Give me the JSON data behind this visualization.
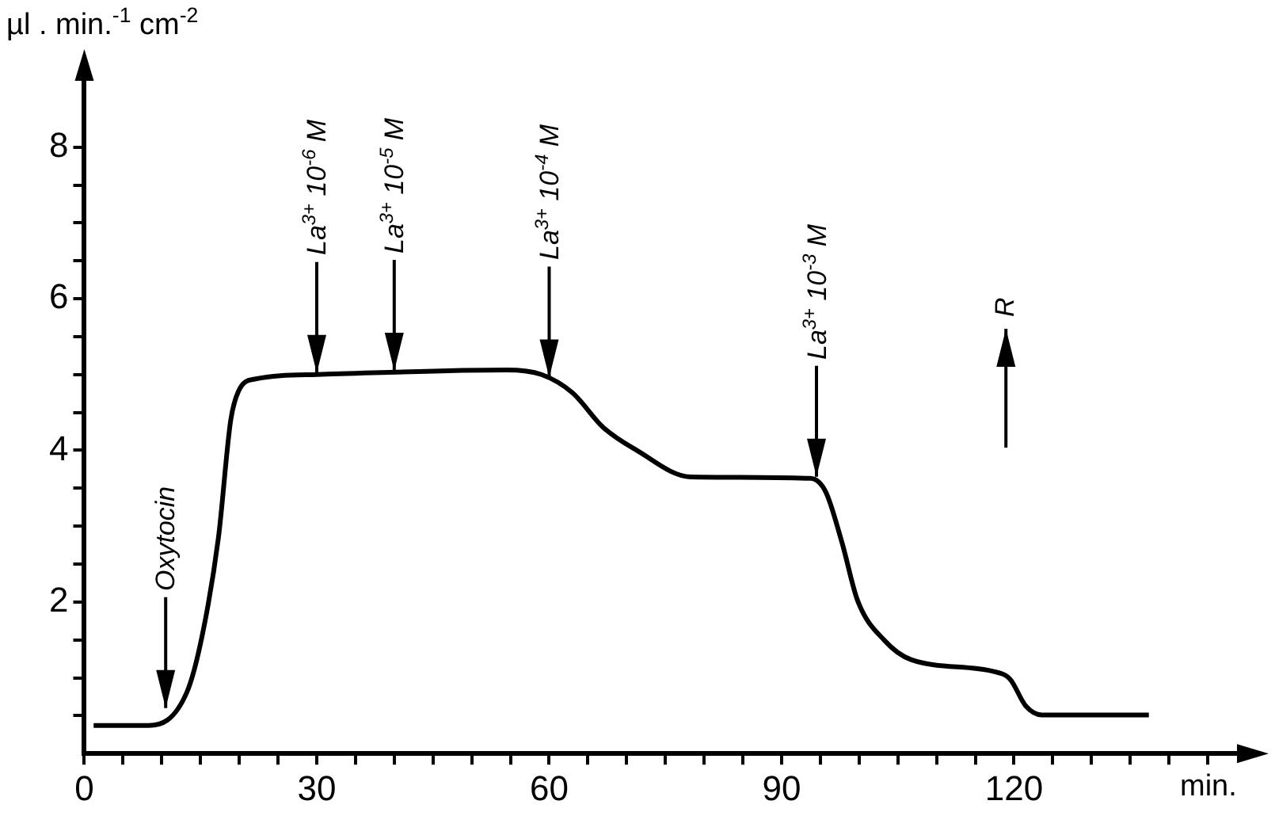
{
  "chart_data": {
    "type": "line",
    "xlabel": "min.",
    "ylabel": "µl . min.$^{-1}$ cm$^{-2}$",
    "xlim": [
      0,
      150
    ],
    "ylim": [
      0,
      9
    ],
    "xticks": [
      0,
      {
        "value": 5,
        "label": null
      },
      {
        "value": 10,
        "label": null
      },
      {
        "value": 15,
        "label": null
      },
      {
        "value": 20,
        "label": null
      },
      {
        "value": 25,
        "label": null
      },
      30,
      {
        "value": 35,
        "label": null
      },
      {
        "value": 40,
        "label": null
      },
      {
        "value": 45,
        "label": null
      },
      {
        "value": 50,
        "label": null
      },
      {
        "value": 55,
        "label": null
      },
      60,
      {
        "value": 65,
        "label": null
      },
      {
        "value": 70,
        "label": null
      },
      {
        "value": 75,
        "label": null
      },
      {
        "value": 80,
        "label": null
      },
      {
        "value": 85,
        "label": null
      },
      90,
      {
        "value": 95,
        "label": null
      },
      {
        "value": 100,
        "label": null
      },
      {
        "value": 105,
        "label": null
      },
      {
        "value": 110,
        "label": null
      },
      {
        "value": 115,
        "label": null
      },
      120,
      {
        "value": 125,
        "label": null
      },
      {
        "value": 130,
        "label": null
      },
      {
        "value": 135,
        "label": null
      },
      {
        "value": 140,
        "label": null
      },
      {
        "value": 145,
        "label": null
      }
    ],
    "yticks": [
      {
        "value": 0.5,
        "label": null
      },
      {
        "value": 1,
        "label": null
      },
      {
        "value": 1.5,
        "label": null
      },
      2,
      {
        "value": 2.5,
        "label": null
      },
      {
        "value": 3,
        "label": null
      },
      {
        "value": 3.5,
        "label": null
      },
      4,
      {
        "value": 4.5,
        "label": null
      },
      {
        "value": 5,
        "label": null
      },
      {
        "value": 5.5,
        "label": null
      },
      6,
      {
        "value": 6.5,
        "label": null
      },
      {
        "value": 7,
        "label": null
      },
      {
        "value": 7.5,
        "label": null
      },
      8
    ],
    "grid": false,
    "legend": false,
    "marker": "none",
    "line_style": "solid",
    "series": [
      {
        "color": "#000000",
        "x": [
          1.2,
          8.3,
          13.2,
          15.2,
          17.3,
          18.9,
          19.9,
          22,
          30,
          54.5,
          59,
          63,
          67,
          71.3,
          78.2,
          93.7,
          95.7,
          97.8,
          99.8,
          103.3,
          106.7,
          117.5,
          119.5,
          121.5,
          123.6,
          137.4
        ],
        "values": [
          0.37,
          0.37,
          0.8,
          1.55,
          2.84,
          4.4,
          4.78,
          4.94,
          5.0,
          5.06,
          5.0,
          4.76,
          4.3,
          4.0,
          3.65,
          3.63,
          3.45,
          2.78,
          2.02,
          1.49,
          1.24,
          1.08,
          0.98,
          0.63,
          0.51,
          0.51
        ]
      }
    ],
    "annotations": [
      {
        "text": "Oxytocin",
        "x": 10.5,
        "y": 0.58
      },
      {
        "text": "La$^{3+}$ 10$^{-6}$ M",
        "x": 30,
        "y": 5.0
      },
      {
        "text": "La$^{3+}$ 10$^{-5}$ M",
        "x": 40,
        "y": 5.03
      },
      {
        "text": "La$^{3+}$ 10$^{-4}$ M",
        "x": 60,
        "y": 4.94
      },
      {
        "text": "La$^{3+}$ 10$^{-3}$ M",
        "x": 94.5,
        "y": 3.63
      },
      "R"
    ]
  }
}
